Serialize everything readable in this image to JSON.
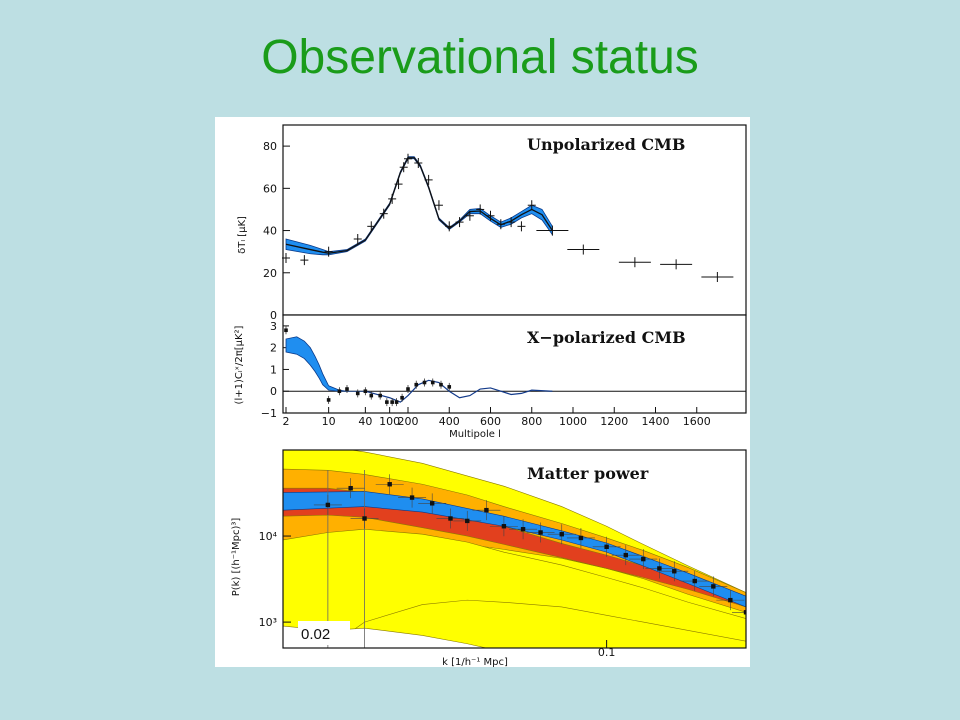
{
  "slide": {
    "title": "Observational status"
  },
  "colors": {
    "title": "#1a9c1a",
    "background": "#bddfe3",
    "band_blue": "#1f8ef0",
    "yellow": "#ffff00",
    "orange": "#ffb000",
    "red": "#e2401e"
  },
  "chart_data": [
    {
      "type": "line",
      "title": "Unpolarized CMB",
      "ylabel": "δTₗ [μK]",
      "yticks": [
        "0",
        "20",
        "40",
        "60",
        "80"
      ],
      "ylim": [
        0,
        90
      ],
      "x_scale": "hybrid: log for l<200, linear above",
      "model_band": {
        "x": [
          2,
          5,
          8,
          10,
          20,
          40,
          100,
          150,
          200,
          230,
          260,
          300,
          350,
          400,
          450,
          500,
          550,
          600,
          650,
          700,
          750,
          800,
          850,
          900
        ],
        "y_low": [
          31,
          29,
          28.5,
          28.5,
          30,
          35,
          52,
          67,
          74,
          74,
          70,
          60,
          45,
          40.5,
          44,
          48,
          48,
          44.5,
          41.5,
          43,
          46,
          48,
          45,
          38
        ],
        "y_high": [
          36,
          33,
          31,
          30,
          31,
          36,
          53,
          68,
          75,
          75,
          71,
          61,
          46,
          41.5,
          45,
          50,
          50.5,
          47,
          44,
          46,
          49,
          52,
          50,
          42
        ]
      },
      "points": [
        {
          "x": 2,
          "y": 27
        },
        {
          "x": 4,
          "y": 26
        },
        {
          "x": 10,
          "y": 30
        },
        {
          "x": 30,
          "y": 36
        },
        {
          "x": 50,
          "y": 42
        },
        {
          "x": 80,
          "y": 48
        },
        {
          "x": 110,
          "y": 55
        },
        {
          "x": 140,
          "y": 62
        },
        {
          "x": 170,
          "y": 70
        },
        {
          "x": 200,
          "y": 74
        },
        {
          "x": 250,
          "y": 72
        },
        {
          "x": 300,
          "y": 64
        },
        {
          "x": 350,
          "y": 52
        },
        {
          "x": 400,
          "y": 42
        },
        {
          "x": 450,
          "y": 44
        },
        {
          "x": 500,
          "y": 47
        },
        {
          "x": 550,
          "y": 50
        },
        {
          "x": 600,
          "y": 47
        },
        {
          "x": 650,
          "y": 43
        },
        {
          "x": 700,
          "y": 44
        },
        {
          "x": 750,
          "y": 42
        },
        {
          "x": 800,
          "y": 52
        },
        {
          "x": 900,
          "y": 40
        },
        {
          "x": 1050,
          "y": 31
        },
        {
          "x": 1300,
          "y": 25
        },
        {
          "x": 1500,
          "y": 24
        },
        {
          "x": 1700,
          "y": 18
        }
      ]
    },
    {
      "type": "line",
      "title": "X−polarized CMB",
      "ylabel": "(l+1)Cₗˣ/2π[μK²]",
      "xlabel": "Multipole l",
      "yticks": [
        "−1",
        "0",
        "1",
        "2",
        "3"
      ],
      "ylim": [
        -1,
        3.5
      ],
      "xticks": [
        "2",
        "10",
        "40",
        "100",
        "200",
        "400",
        "600",
        "800",
        "1000",
        "1200",
        "1400",
        "1600"
      ],
      "model_band": {
        "x": [
          2,
          3,
          4,
          5,
          6,
          7,
          8,
          10,
          15,
          20,
          40
        ],
        "y_low": [
          1.8,
          1.7,
          1.5,
          1.2,
          0.9,
          0.6,
          0.3,
          0.05,
          0,
          0,
          0
        ],
        "y_high": [
          2.4,
          2.5,
          2.3,
          2.0,
          1.6,
          1.2,
          0.8,
          0.25,
          0.05,
          0,
          0
        ]
      },
      "model_line": {
        "x": [
          40,
          100,
          150,
          200,
          250,
          300,
          350,
          400,
          450,
          500,
          550,
          600,
          650,
          700,
          750,
          800,
          900
        ],
        "y": [
          0,
          -0.3,
          -0.5,
          -0.2,
          0.3,
          0.5,
          0.4,
          0,
          -0.3,
          -0.2,
          0.1,
          0.15,
          0,
          -0.15,
          -0.1,
          0.05,
          0
        ]
      },
      "points": [
        {
          "x": 2,
          "y": 2.8
        },
        {
          "x": 10,
          "y": -0.4
        },
        {
          "x": 15,
          "y": 0
        },
        {
          "x": 20,
          "y": 0.1
        },
        {
          "x": 30,
          "y": -0.1
        },
        {
          "x": 40,
          "y": 0
        },
        {
          "x": 50,
          "y": -0.2
        },
        {
          "x": 70,
          "y": -0.2
        },
        {
          "x": 90,
          "y": -0.5
        },
        {
          "x": 110,
          "y": -0.5
        },
        {
          "x": 130,
          "y": -0.5
        },
        {
          "x": 160,
          "y": -0.3
        },
        {
          "x": 200,
          "y": 0.1
        },
        {
          "x": 240,
          "y": 0.3
        },
        {
          "x": 280,
          "y": 0.4
        },
        {
          "x": 320,
          "y": 0.4
        },
        {
          "x": 360,
          "y": 0.3
        },
        {
          "x": 400,
          "y": 0.2
        }
      ]
    },
    {
      "type": "scatter",
      "title": "Matter power",
      "ylabel": "P(k) [(h⁻¹Mpc)³]",
      "xlabel": "k [1/h⁻¹ Mpc]",
      "x_scale": "log",
      "y_scale": "log",
      "xlim": [
        0.02,
        0.2
      ],
      "ylim": [
        500,
        100000
      ],
      "yticks": [
        "10³",
        "10⁴"
      ],
      "xticks": [
        "0.1"
      ],
      "annotation": "0.02",
      "model_band": {
        "x": [
          0.02,
          0.03,
          0.04,
          0.06,
          0.08,
          0.1,
          0.12,
          0.15,
          0.2
        ],
        "y_low": [
          20000,
          22000,
          19000,
          13000,
          9000,
          6500,
          4500,
          2800,
          1500
        ],
        "y_high": [
          32000,
          33000,
          27000,
          17000,
          11500,
          8300,
          5800,
          3700,
          2000
        ]
      },
      "points": [
        {
          "x": 0.025,
          "y": 23000
        },
        {
          "x": 0.028,
          "y": 36000
        },
        {
          "x": 0.03,
          "y": 16000
        },
        {
          "x": 0.034,
          "y": 40000
        },
        {
          "x": 0.038,
          "y": 28000
        },
        {
          "x": 0.042,
          "y": 24000
        },
        {
          "x": 0.046,
          "y": 16000
        },
        {
          "x": 0.05,
          "y": 15000
        },
        {
          "x": 0.055,
          "y": 20000
        },
        {
          "x": 0.06,
          "y": 13000
        },
        {
          "x": 0.066,
          "y": 12000
        },
        {
          "x": 0.072,
          "y": 11000
        },
        {
          "x": 0.08,
          "y": 10500
        },
        {
          "x": 0.088,
          "y": 9500
        },
        {
          "x": 0.1,
          "y": 7500
        },
        {
          "x": 0.11,
          "y": 6000
        },
        {
          "x": 0.12,
          "y": 5400
        },
        {
          "x": 0.13,
          "y": 4200
        },
        {
          "x": 0.14,
          "y": 3900
        },
        {
          "x": 0.155,
          "y": 3000
        },
        {
          "x": 0.17,
          "y": 2600
        },
        {
          "x": 0.185,
          "y": 1800
        },
        {
          "x": 0.2,
          "y": 1300
        }
      ]
    }
  ]
}
